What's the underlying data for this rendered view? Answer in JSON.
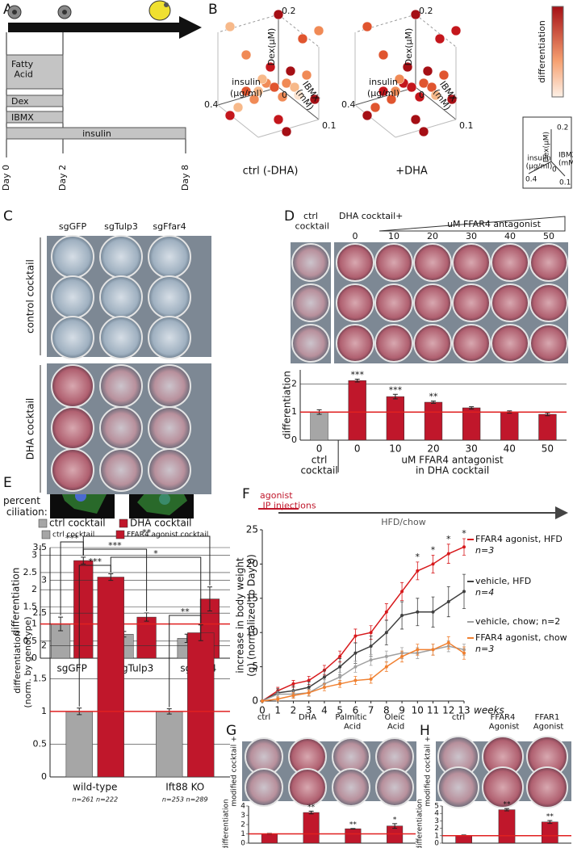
{
  "panel_labels": [
    "A",
    "B",
    "C",
    "D",
    "E",
    "F",
    "G",
    "H"
  ],
  "panel_a": {
    "treatments": [
      "Fatty Acid",
      "Dex",
      "IBMX",
      "insulin"
    ],
    "days": [
      "Day 0",
      "Day 2",
      "Day 8"
    ]
  },
  "panel_b": {
    "plots": [
      "ctrl (-DHA)",
      "+DHA"
    ],
    "dex_axis": "Dex(µM)",
    "insulin_axis": "insulin",
    "insulin_unit": "(µg/ml)",
    "ibmx_axis": "IBMX",
    "ibmx_unit": "(mM)",
    "dex_max": "0.2",
    "insulin_max": "0.4",
    "ibmx_max": "0.1",
    "origin": "0",
    "colorbar_label": "differentiation"
  },
  "panel_c": {
    "rows": [
      "control cocktail",
      "DHA cocktail"
    ]
  },
  "panel_d": {
    "ctrl": "ctrl cocktail",
    "header": "DHA cocktail+",
    "gradient": "uM FFAR4 antagonist"
  },
  "panel_e": {
    "caption": "percent ciliation:"
  },
  "panel_f": {
    "injections": "agonist IP injections",
    "diet": "HFD/chow"
  },
  "panel_g": {
    "side": "modified cocktail +"
  },
  "panel_h": {
    "side": "modified cocktail +"
  },
  "chart_data": [
    {
      "type": "bar",
      "categories": [
        "sgGFP",
        "sgTulp3",
        "sgFfar4"
      ],
      "series": [
        {
          "name": "ctrl cocktail",
          "color": "#a6a6a6",
          "values": [
            1.0,
            0.7,
            0.58
          ],
          "errors": [
            0.2,
            0.08,
            0.12
          ]
        },
        {
          "name": "DHA cocktail",
          "color": "#c0172b",
          "values": [
            2.85,
            1.2,
            1.73
          ],
          "errors": [
            0.1,
            0.12,
            0.35
          ]
        }
      ],
      "y_label": "differentiation",
      "ylim": [
        0,
        3.3
      ],
      "yticks": [
        0,
        0.5,
        1,
        1.5,
        2,
        2.5,
        3
      ],
      "grid": true,
      "ref_line": 1,
      "ref_color": "#e02020",
      "brackets": [
        {
          "label": "***"
        },
        {
          "label": "***"
        },
        {
          "label": "**"
        }
      ]
    },
    {
      "type": "bar",
      "categories": [
        "0",
        "0",
        "10",
        "20",
        "30",
        "40",
        "50"
      ],
      "series": [
        {
          "colors": [
            "#a6a6a6",
            "#c0172b",
            "#c0172b",
            "#c0172b",
            "#c0172b",
            "#c0172b",
            "#c0172b"
          ],
          "values": [
            1.0,
            2.12,
            1.55,
            1.35,
            1.15,
            1.0,
            0.92
          ],
          "errors": [
            0.08,
            0.05,
            0.08,
            0.04,
            0.04,
            0.04,
            0.05
          ]
        }
      ],
      "y_label": "differentiation",
      "ylim": [
        0,
        2.5
      ],
      "yticks": [
        0,
        1,
        2
      ],
      "grid": true,
      "ref_line": 1,
      "ref_color": "#e02020",
      "significance": [
        null,
        "***",
        "***",
        "**",
        null,
        null,
        null
      ],
      "x_group_labels": [
        [
          "ctrl",
          "cocktail"
        ],
        [
          "uM FFAR4 antagonist",
          "in DHA cocktail"
        ]
      ]
    },
    {
      "type": "bar",
      "categories": [
        "wild-type",
        "Ift88 KO"
      ],
      "series": [
        {
          "name": "ctrl cocktail",
          "color": "#a6a6a6",
          "values": [
            1.0,
            1.0
          ],
          "errors": [
            0.05,
            0.04
          ]
        },
        {
          "name": "FFAR4 agonist cocktail",
          "color": "#c0172b",
          "values": [
            3.05,
            2.2
          ],
          "errors": [
            0.05,
            0.12
          ]
        }
      ],
      "y_label": [
        "differentiation",
        "(norm. by genotype)"
      ],
      "ylim": [
        0,
        3.5
      ],
      "yticks": [
        0,
        0.5,
        1,
        1.5,
        2,
        2.5,
        3,
        3.5
      ],
      "grid": true,
      "ref_line": 1,
      "ref_color": "#e02020",
      "brackets": [
        {
          "label": "***"
        },
        {
          "label": "**"
        },
        {
          "label": "*"
        }
      ],
      "n_labels": [
        "n=261 n=222",
        "n=253 n=289"
      ]
    },
    {
      "type": "line",
      "x": [
        0,
        1,
        2,
        3,
        4,
        5,
        6,
        7,
        8,
        9,
        10,
        11,
        12,
        13
      ],
      "xlim": [
        0,
        13
      ],
      "xticks": [
        0,
        1,
        2,
        3,
        4,
        5,
        6,
        7,
        8,
        9,
        10,
        11,
        12,
        13
      ],
      "x_label": "weeks",
      "ylim": [
        0,
        25
      ],
      "yticks": [
        0,
        5,
        10,
        15,
        20,
        25
      ],
      "y_label": [
        "increase in body weight",
        "(g) (normalized to Day 0)"
      ],
      "series": [
        {
          "name": "FFAR4 agonist, HFD",
          "n_label": "n=3",
          "color": "#d7191c",
          "values": [
            0,
            1.5,
            2.5,
            3,
            4.5,
            6.5,
            9.5,
            10,
            13,
            16,
            19,
            20,
            21.5,
            22.5
          ],
          "errors": [
            0,
            0.5,
            0.5,
            0.6,
            0.7,
            0.8,
            1,
            1,
            1.2,
            1.3,
            1.3,
            1.3,
            1.4,
            1.2
          ]
        },
        {
          "name": "vehicle, HFD",
          "n_label": "n=4",
          "color": "#404040",
          "values": [
            0,
            1.2,
            1.5,
            2,
            3.5,
            5,
            7,
            8,
            10,
            12.5,
            13,
            13,
            14.5,
            16
          ],
          "errors": [
            0,
            0.6,
            0.7,
            0.8,
            1,
            1.2,
            1.5,
            1.5,
            1.8,
            2,
            2,
            2.2,
            2.2,
            2.5
          ]
        },
        {
          "name": "vehicle, chow; n=2",
          "color": "#a0a0a0",
          "values": [
            0,
            1,
            1,
            1.2,
            2.5,
            3.5,
            5,
            6,
            6.5,
            7,
            7,
            7.5,
            8,
            7.5
          ],
          "errors": [
            0,
            0.4,
            0.5,
            0.5,
            0.6,
            0.7,
            0.8,
            0.8,
            0.8,
            0.8,
            0.8,
            0.8,
            0.8,
            0.8
          ]
        },
        {
          "name": "FFAR4 agonist, chow",
          "n_label": "n=3",
          "color": "#f08030",
          "values": [
            0,
            0.3,
            0.8,
            1.2,
            2,
            2.5,
            3,
            3.2,
            5,
            6.5,
            7.5,
            7.5,
            8.5,
            7
          ],
          "errors": [
            0,
            0.3,
            0.4,
            0.4,
            0.5,
            0.5,
            0.6,
            0.6,
            0.7,
            0.8,
            0.8,
            0.8,
            0.9,
            0.9
          ]
        }
      ],
      "significance": {
        "x": [
          10,
          11,
          12,
          13
        ],
        "labels": [
          "*",
          "*",
          "*",
          "*"
        ]
      }
    },
    {
      "type": "bar",
      "categories": [
        "ctrl",
        "DHA",
        "Palmitic Acid",
        "Oleic Acid"
      ],
      "series": [
        {
          "color": "#c0172b",
          "values": [
            1.0,
            3.3,
            1.55,
            1.85
          ],
          "errors": [
            0.05,
            0.15,
            0.03,
            0.25
          ]
        }
      ],
      "y_label": "differentiation",
      "ylim": [
        0,
        4
      ],
      "yticks": [
        0,
        1,
        2,
        3,
        4
      ],
      "grid": false,
      "ref_line": 1,
      "ref_color": "#e02020",
      "significance": [
        null,
        "**",
        "**",
        "*"
      ]
    },
    {
      "type": "bar",
      "categories": [
        "ctrl",
        "FFAR4 Agonist",
        "FFAR1 Agonist"
      ],
      "series": [
        {
          "color": "#c0172b",
          "values": [
            1.05,
            4.5,
            2.85
          ],
          "errors": [
            0.05,
            0.15,
            0.2
          ]
        }
      ],
      "y_label": "differentiation",
      "ylim": [
        0,
        5
      ],
      "yticks": [
        0,
        1,
        2,
        3,
        4,
        5
      ],
      "grid": false,
      "ref_line": 1,
      "ref_color": "#e02020",
      "significance": [
        null,
        "**",
        "**"
      ]
    }
  ]
}
